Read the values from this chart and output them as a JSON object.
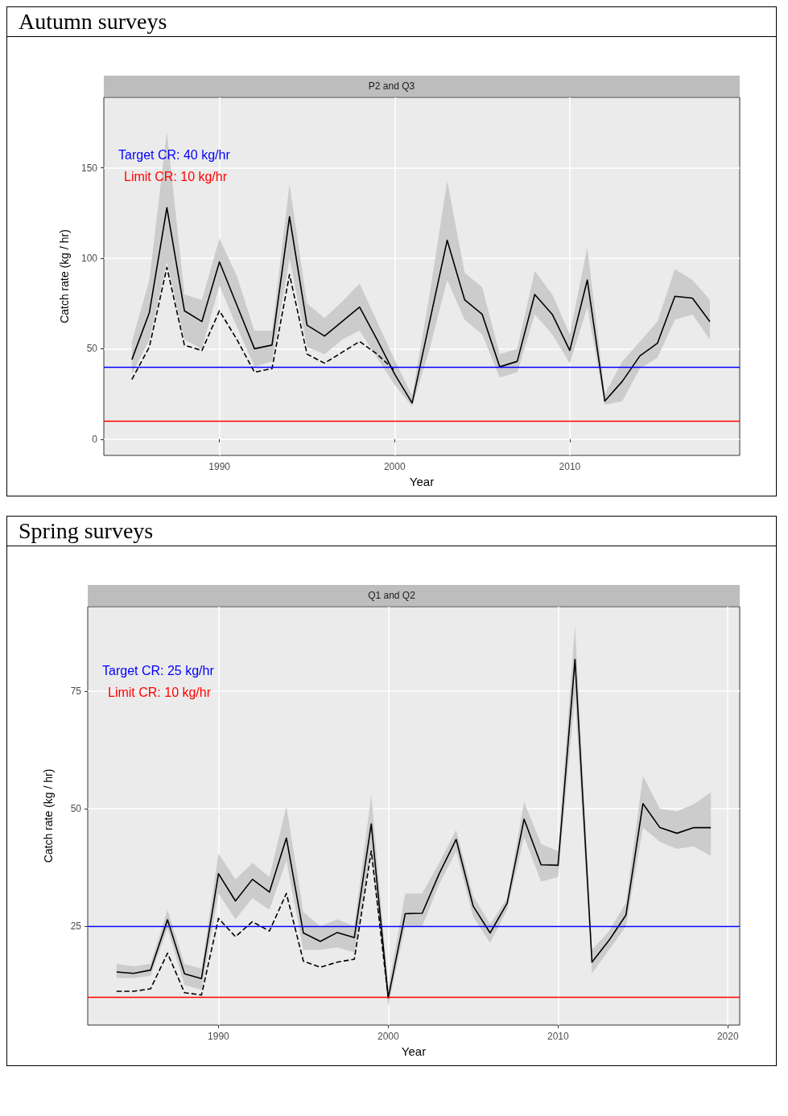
{
  "chart_data": [
    {
      "type": "line",
      "title": "Autumn surveys",
      "subtitle": "P2 and Q3",
      "xlabel": "Year",
      "ylabel": "Catch rate (kg / hr)",
      "xlim": [
        1983.4,
        2019.7
      ],
      "xticks": [
        1990,
        2000,
        2010
      ],
      "ylim": [
        -9,
        189
      ],
      "yticks": [
        0,
        50,
        100,
        150
      ],
      "grid": true,
      "marker": "none",
      "series": [
        {
          "color": "#000000",
          "line_style": "solid",
          "x": [
            1985,
            1986,
            1987,
            1988,
            1989,
            1990,
            1991,
            1992,
            1993,
            1994,
            1995,
            1996,
            1997,
            1998,
            1999,
            2000,
            2001,
            2002,
            2003,
            2004,
            2005,
            2006,
            2007,
            2008,
            2009,
            2010,
            2011,
            2012,
            2013,
            2014,
            2015,
            2016,
            2017,
            2018
          ],
          "values": [
            44,
            70,
            128,
            71,
            65,
            98,
            74,
            50,
            52,
            123,
            63,
            57,
            65,
            73,
            55,
            36,
            20,
            65,
            110,
            77,
            69,
            40,
            43,
            80,
            69,
            49,
            88,
            21,
            32,
            46,
            53,
            79,
            78,
            65
          ],
          "lower": [
            36,
            55,
            98,
            55,
            50,
            85,
            62,
            40,
            43,
            100,
            51,
            47,
            55,
            60,
            45,
            30,
            18,
            50,
            88,
            66,
            58,
            34,
            37,
            69,
            58,
            42,
            73,
            19,
            21,
            39,
            45,
            66,
            69,
            55
          ],
          "upper": [
            54,
            88,
            170,
            80,
            77,
            111,
            90,
            60,
            60,
            141,
            75,
            67,
            76,
            86,
            65,
            44,
            24,
            80,
            143,
            92,
            84,
            47,
            50,
            93,
            80,
            58,
            106,
            25,
            43,
            54,
            65,
            94,
            88,
            77
          ]
        },
        {
          "color": "#000000",
          "line_style": "dashed",
          "x": [
            1985,
            1986,
            1987,
            1988,
            1989,
            1990,
            1991,
            1992,
            1993,
            1994,
            1995,
            1996,
            1997,
            1998,
            1999,
            2000
          ],
          "values": [
            33,
            51,
            95,
            52,
            49,
            71,
            55,
            37,
            39,
            91,
            47,
            42,
            48,
            54,
            47,
            38
          ]
        }
      ],
      "ref_lines": [
        {
          "axis": "y",
          "value": 40,
          "label": "Target CR: 40 kg/hr",
          "color": "#0000ff"
        },
        {
          "axis": "y",
          "value": 10,
          "label": "Limit CR: 10 kg/hr",
          "color": "#ff0000"
        }
      ]
    },
    {
      "type": "line",
      "title": "Spring surveys",
      "subtitle": "Q1 and Q2",
      "xlabel": "Year",
      "ylabel": "Catch rate (kg / hr)",
      "xlim": [
        1982.3,
        2020.7
      ],
      "xticks": [
        1990,
        2000,
        2010,
        2020
      ],
      "ylim": [
        4,
        93
      ],
      "yticks": [
        25,
        50,
        75
      ],
      "grid": true,
      "marker": "none",
      "series": [
        {
          "color": "#000000",
          "line_style": "solid",
          "x": [
            1984,
            1985,
            1986,
            1987,
            1988,
            1989,
            1990,
            1991,
            1992,
            1993,
            1994,
            1995,
            1996,
            1997,
            1998,
            1999,
            2000,
            2001,
            2002,
            2003,
            2004,
            2005,
            2006,
            2007,
            2008,
            2009,
            2010,
            2011,
            2012,
            2013,
            2014,
            2015,
            2016,
            2017,
            2018,
            2019
          ],
          "values": [
            15.3,
            15,
            15.7,
            26.4,
            14.9,
            13.9,
            36.2,
            30.4,
            35,
            32.3,
            43.8,
            23.6,
            21.8,
            23.7,
            22.6,
            46.8,
            9.8,
            27.7,
            27.8,
            36.2,
            43.5,
            29.3,
            23.6,
            29.9,
            47.8,
            38.1,
            38,
            81.8,
            17.4,
            22,
            27.4,
            51.1,
            46,
            44.8,
            46,
            46
          ],
          "lower": [
            14,
            14,
            14.5,
            24.5,
            12.5,
            11.5,
            32,
            26.5,
            31,
            28.5,
            39,
            20,
            20,
            20.5,
            19.5,
            41,
            8,
            25,
            25,
            34,
            41,
            27,
            21.5,
            28.5,
            44,
            34.5,
            35.5,
            74,
            15,
            20,
            25,
            46,
            43,
            41.5,
            42,
            40
          ],
          "upper": [
            17,
            16.5,
            17,
            28.5,
            17,
            16,
            40.5,
            35,
            38.5,
            35.5,
            50.5,
            28,
            25,
            26.5,
            25,
            53,
            12,
            32,
            32,
            38.5,
            45.5,
            31.5,
            25.5,
            31,
            51.5,
            42.5,
            41,
            89,
            20,
            24,
            30,
            57,
            50,
            49.5,
            51,
            53.5
          ]
        },
        {
          "color": "#000000",
          "line_style": "dashed",
          "x": [
            1984,
            1985,
            1986,
            1987,
            1988,
            1989,
            1990,
            1991,
            1992,
            1993,
            1994,
            1995,
            1996,
            1997,
            1998,
            1999,
            2000
          ],
          "values": [
            11.2,
            11.2,
            11.7,
            19.3,
            10.9,
            10.4,
            26.7,
            22.8,
            26,
            24,
            32,
            17.6,
            16.3,
            17.4,
            18,
            41,
            9.8
          ]
        }
      ],
      "ref_lines": [
        {
          "axis": "y",
          "value": 25,
          "label": "Target CR: 25 kg/hr",
          "color": "#0000ff"
        },
        {
          "axis": "y",
          "value": 10,
          "label": "Limit CR: 10 kg/hr",
          "color": "#ff0000"
        }
      ]
    }
  ]
}
